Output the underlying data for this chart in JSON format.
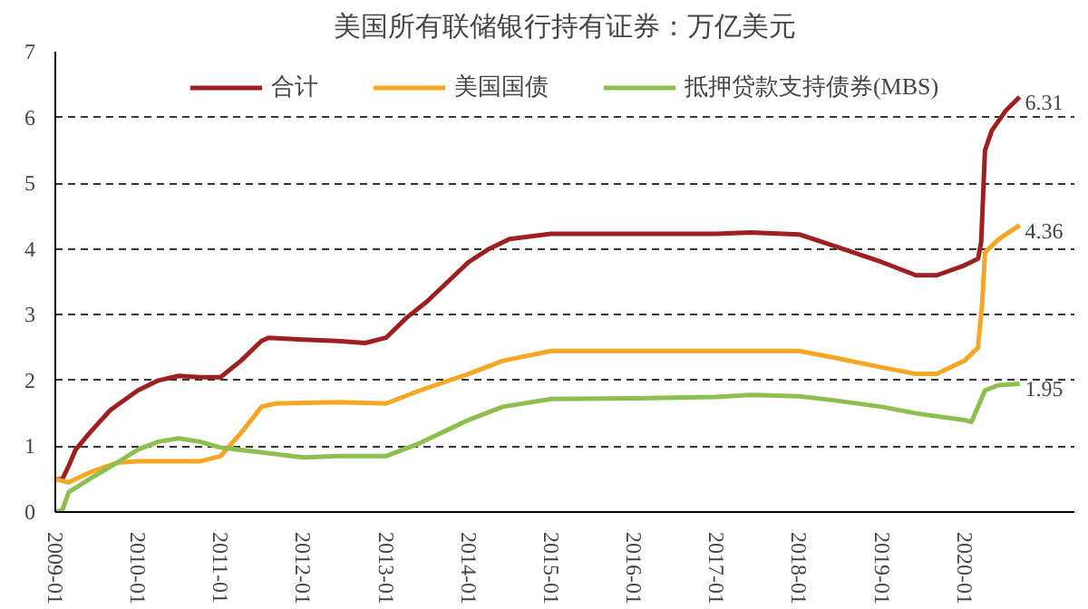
{
  "chart_data": {
    "type": "line",
    "title": "美国所有联储银行持有证券：万亿美元",
    "xlim": [
      "2009-01",
      "2021-05"
    ],
    "ylim": [
      0,
      7
    ],
    "yticks": [
      0,
      1,
      2,
      3,
      4,
      5,
      6,
      7
    ],
    "xticks": [
      "2009-01",
      "2010-01",
      "2011-01",
      "2012-01",
      "2013-01",
      "2014-01",
      "2015-01",
      "2016-01",
      "2017-01",
      "2018-01",
      "2019-01",
      "2020-01"
    ],
    "grid": "y",
    "legend": "top",
    "line_style": "solid",
    "marker": "none",
    "series": [
      {
        "name": "合计",
        "color": "#9e1f1f",
        "x": [
          "2009-01",
          "2009-02",
          "2009-03",
          "2009-04",
          "2009-06",
          "2009-09",
          "2010-01",
          "2010-04",
          "2010-07",
          "2010-10",
          "2011-01",
          "2011-04",
          "2011-07",
          "2011-08",
          "2012-01",
          "2012-06",
          "2012-10",
          "2013-01",
          "2013-04",
          "2013-07",
          "2013-10",
          "2014-01",
          "2014-04",
          "2014-07",
          "2015-01",
          "2016-01",
          "2017-01",
          "2017-06",
          "2018-01",
          "2018-06",
          "2019-01",
          "2019-06",
          "2019-09",
          "2020-01",
          "2020-03",
          "2020-03-15",
          "2020-04",
          "2020-05",
          "2020-07",
          "2020-09"
        ],
        "values": [
          0.5,
          0.5,
          0.7,
          0.95,
          1.2,
          1.55,
          1.85,
          2.0,
          2.07,
          2.05,
          2.05,
          2.3,
          2.6,
          2.65,
          2.62,
          2.6,
          2.57,
          2.65,
          2.95,
          3.2,
          3.5,
          3.8,
          4.0,
          4.15,
          4.23,
          4.23,
          4.23,
          4.25,
          4.22,
          4.05,
          3.8,
          3.6,
          3.6,
          3.75,
          3.85,
          4.1,
          5.5,
          5.8,
          6.1,
          6.31
        ]
      },
      {
        "name": "美国国债",
        "color": "#f5a623",
        "x": [
          "2009-01",
          "2009-03",
          "2009-06",
          "2009-10",
          "2010-01",
          "2010-10",
          "2011-01",
          "2011-04",
          "2011-07",
          "2011-09",
          "2012-06",
          "2013-01",
          "2013-06",
          "2014-01",
          "2014-06",
          "2015-01",
          "2016-01",
          "2017-01",
          "2018-01",
          "2018-06",
          "2019-01",
          "2019-06",
          "2019-09",
          "2020-01",
          "2020-03",
          "2020-03-20",
          "2020-04",
          "2020-06",
          "2020-09"
        ],
        "values": [
          0.5,
          0.45,
          0.6,
          0.75,
          0.77,
          0.77,
          0.85,
          1.2,
          1.6,
          1.65,
          1.67,
          1.65,
          1.85,
          2.1,
          2.3,
          2.45,
          2.45,
          2.45,
          2.45,
          2.35,
          2.2,
          2.1,
          2.1,
          2.3,
          2.5,
          3.2,
          3.95,
          4.15,
          4.36
        ]
      },
      {
        "name": "抵押贷款支持债券(MBS)",
        "color": "#8cbf4f",
        "x": [
          "2009-01",
          "2009-02",
          "2009-03",
          "2009-06",
          "2009-10",
          "2010-01",
          "2010-04",
          "2010-07",
          "2010-10",
          "2011-01",
          "2011-06",
          "2012-01",
          "2012-06",
          "2013-01",
          "2013-06",
          "2014-01",
          "2014-06",
          "2015-01",
          "2016-01",
          "2017-01",
          "2017-06",
          "2018-01",
          "2018-06",
          "2019-01",
          "2019-06",
          "2020-01",
          "2020-02",
          "2020-03",
          "2020-04",
          "2020-06",
          "2020-09"
        ],
        "values": [
          0,
          0.03,
          0.3,
          0.5,
          0.75,
          0.95,
          1.07,
          1.12,
          1.07,
          0.98,
          0.92,
          0.83,
          0.85,
          0.85,
          1.05,
          1.4,
          1.6,
          1.72,
          1.73,
          1.75,
          1.78,
          1.76,
          1.7,
          1.6,
          1.5,
          1.4,
          1.37,
          1.6,
          1.85,
          1.93,
          1.95
        ]
      }
    ],
    "annotations": [
      {
        "text": "6.31",
        "x": "2020-09",
        "y": 6.31
      },
      {
        "text": "4.36",
        "x": "2020-09",
        "y": 4.36
      },
      {
        "text": "1.95",
        "x": "2020-09",
        "y": 1.95
      }
    ]
  }
}
